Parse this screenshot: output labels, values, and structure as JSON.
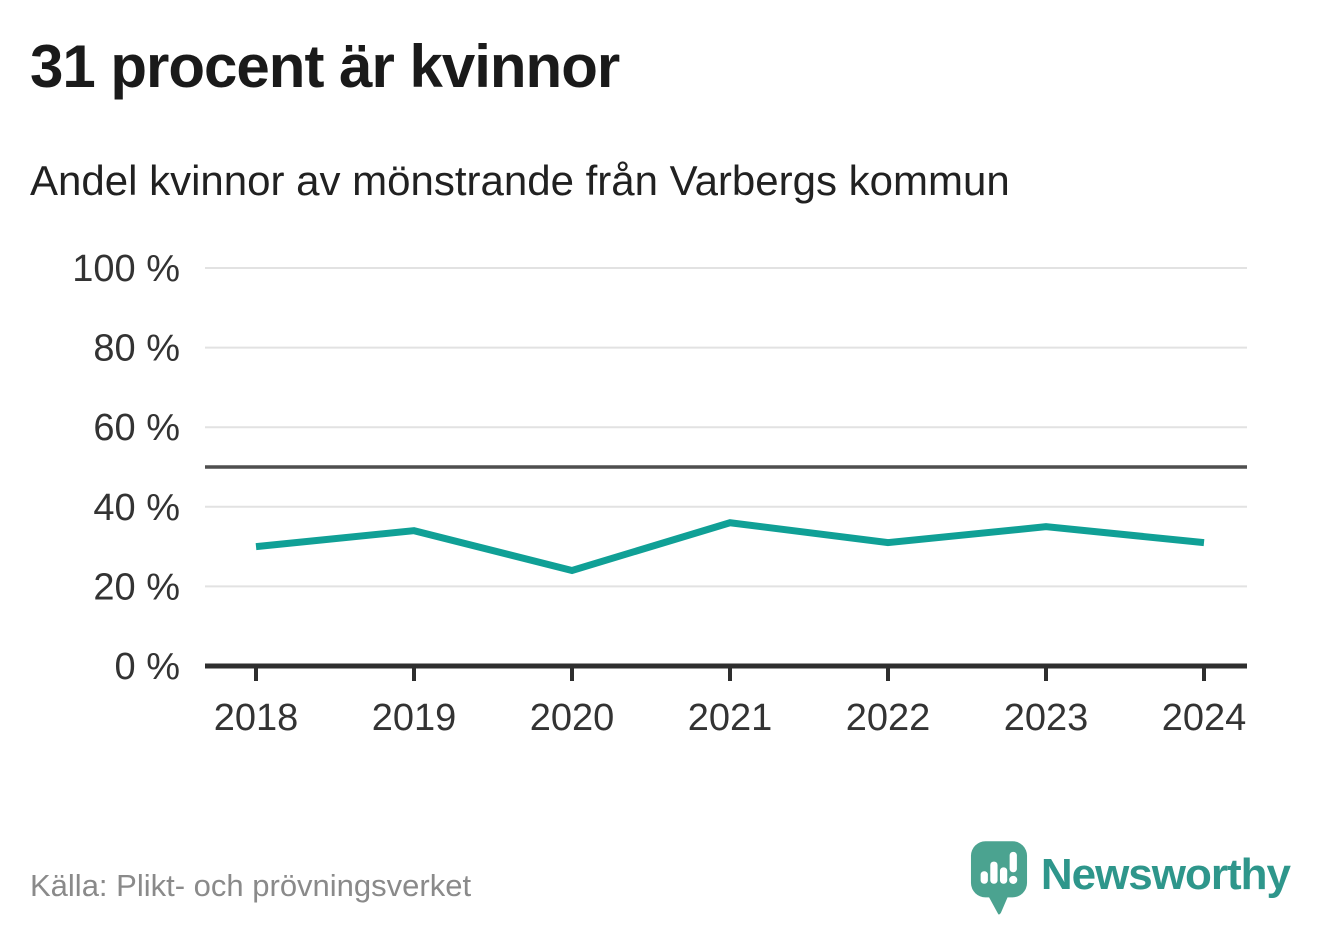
{
  "header": {
    "title": "31 procent är kvinnor",
    "subtitle": "Andel kvinnor av mönstrande från Varbergs kommun"
  },
  "chart_data": {
    "type": "line",
    "x": [
      2018,
      2019,
      2020,
      2021,
      2022,
      2023,
      2024
    ],
    "series": [
      {
        "name": "Andel kvinnor av mönstrande",
        "values": [
          30,
          34,
          24,
          36,
          31,
          35,
          31
        ]
      }
    ],
    "title": "31 procent är kvinnor",
    "subtitle": "Andel kvinnor av mönstrande från Varbergs kommun",
    "xlabel": "",
    "ylabel": "",
    "ylim": [
      0,
      100
    ],
    "yticks": [
      0,
      20,
      40,
      60,
      80,
      100
    ],
    "ytick_suffix": " %",
    "reference_line": 50,
    "grid": true,
    "legend_position": "none",
    "colors": {
      "line": "#10a096",
      "grid": "#e2e2e2",
      "reference": "#4f4f4f",
      "axis": "#2e2e2e",
      "tick_label": "#333333"
    }
  },
  "footer": {
    "source": "Källa: Plikt- och prövningsverket",
    "brand": "Newsworthy",
    "brand_color": "#2e968b",
    "logo_color": "#4ba390"
  },
  "icons": {
    "logo": "newsworthy-speech-bubble-bar-chart-icon"
  }
}
